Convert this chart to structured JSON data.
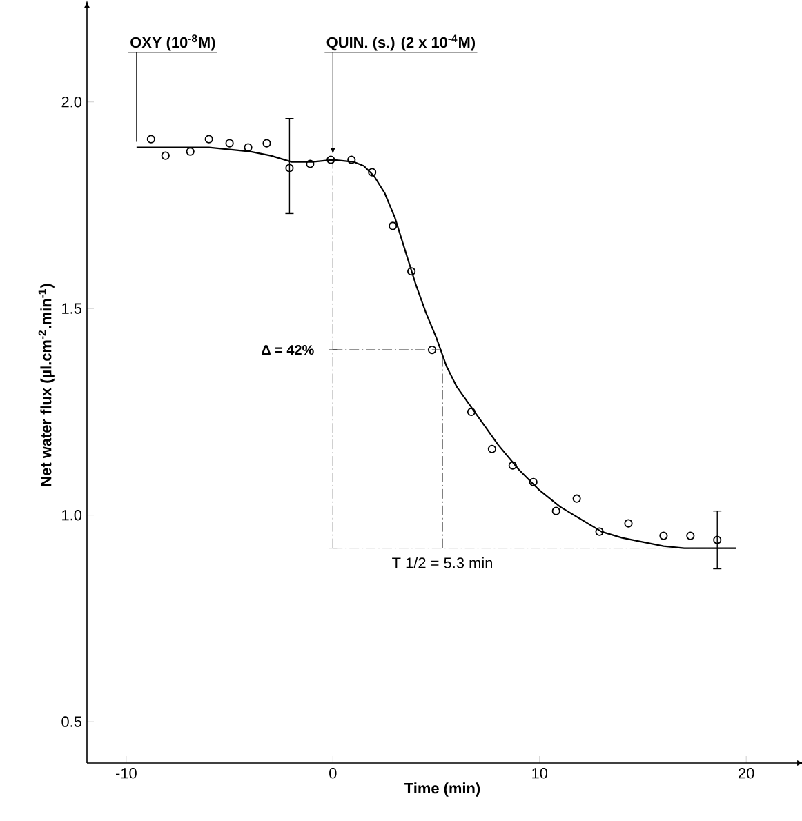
{
  "chart_data": {
    "type": "scatter",
    "xlabel": "Time (min)",
    "ylabel": "Net water flux (µl.cm$^{-2}$.min$^{-1}$)",
    "xlim": [
      -11.9,
      22.5
    ],
    "ylim": [
      0.4,
      2.23
    ],
    "xticks": [
      -10,
      0,
      10,
      20
    ],
    "yticks": [
      {
        "value": 0.5,
        "label": "0.5"
      },
      {
        "value": 1.0,
        "label": "1.0"
      },
      {
        "value": 1.5,
        "label": "1.5"
      },
      {
        "value": 2.0,
        "label": "2.0"
      }
    ],
    "series": [
      {
        "color": "#000000",
        "marker": "circle",
        "x": [
          -8.8,
          -8.1,
          -6.9,
          -6.0,
          -5.0,
          -4.1,
          -3.2,
          -2.1,
          -1.1,
          -0.1,
          0.9,
          1.9,
          2.9,
          3.8,
          4.8,
          6.7,
          7.7,
          8.7,
          9.7,
          10.8,
          11.8,
          12.9,
          14.3,
          16.0,
          17.3,
          18.6
        ],
        "values": [
          1.91,
          1.87,
          1.88,
          1.91,
          1.9,
          1.89,
          1.9,
          1.84,
          1.85,
          1.86,
          1.86,
          1.83,
          1.7,
          1.59,
          1.4,
          1.25,
          1.16,
          1.12,
          1.08,
          1.01,
          1.04,
          0.96,
          0.98,
          0.95,
          0.95,
          0.94
        ],
        "errors": [
          null,
          null,
          null,
          null,
          null,
          null,
          null,
          [
            1.73,
            1.96
          ],
          null,
          null,
          null,
          null,
          null,
          null,
          null,
          null,
          null,
          null,
          null,
          null,
          null,
          null,
          null,
          null,
          null,
          [
            0.87,
            1.01
          ]
        ]
      },
      {
        "type": "line",
        "color": "#000000",
        "marker": "none",
        "line_style": "solid",
        "x": [
          -9.5,
          -6,
          -4,
          -3,
          -2,
          -1,
          0,
          1,
          1.5,
          2,
          2.5,
          3,
          3.5,
          4,
          4.5,
          5,
          5.5,
          6,
          7,
          8,
          9,
          10,
          11,
          12,
          13,
          14,
          15,
          16,
          17,
          18,
          19.5
        ],
        "values": [
          1.89,
          1.89,
          1.88,
          1.87,
          1.855,
          1.855,
          1.86,
          1.855,
          1.845,
          1.82,
          1.78,
          1.72,
          1.64,
          1.56,
          1.49,
          1.43,
          1.36,
          1.31,
          1.24,
          1.17,
          1.11,
          1.06,
          1.02,
          0.99,
          0.96,
          0.945,
          0.935,
          0.925,
          0.92,
          0.92,
          0.92
        ]
      }
    ],
    "ref_lines": [
      {
        "axis": "y",
        "value": 1.4,
        "line_style": "dashed"
      },
      {
        "axis": "y",
        "value": 0.92,
        "line_style": "dashed"
      },
      {
        "axis": "x",
        "value": 5.3,
        "label": "T 1/2 = 5.3 min",
        "line_style": "dashed"
      },
      {
        "axis": "x",
        "value": 0,
        "line_style": "dashed"
      }
    ],
    "annotations": [
      {
        "text": "OXY (10$^{-8}$M)",
        "x": -9.5,
        "y": 1.89
      },
      {
        "text": "QUIN. (s.) (2 x 10$^{-4}$M)",
        "x": 0,
        "y": 1.86
      },
      "Δ = 42%"
    ]
  }
}
